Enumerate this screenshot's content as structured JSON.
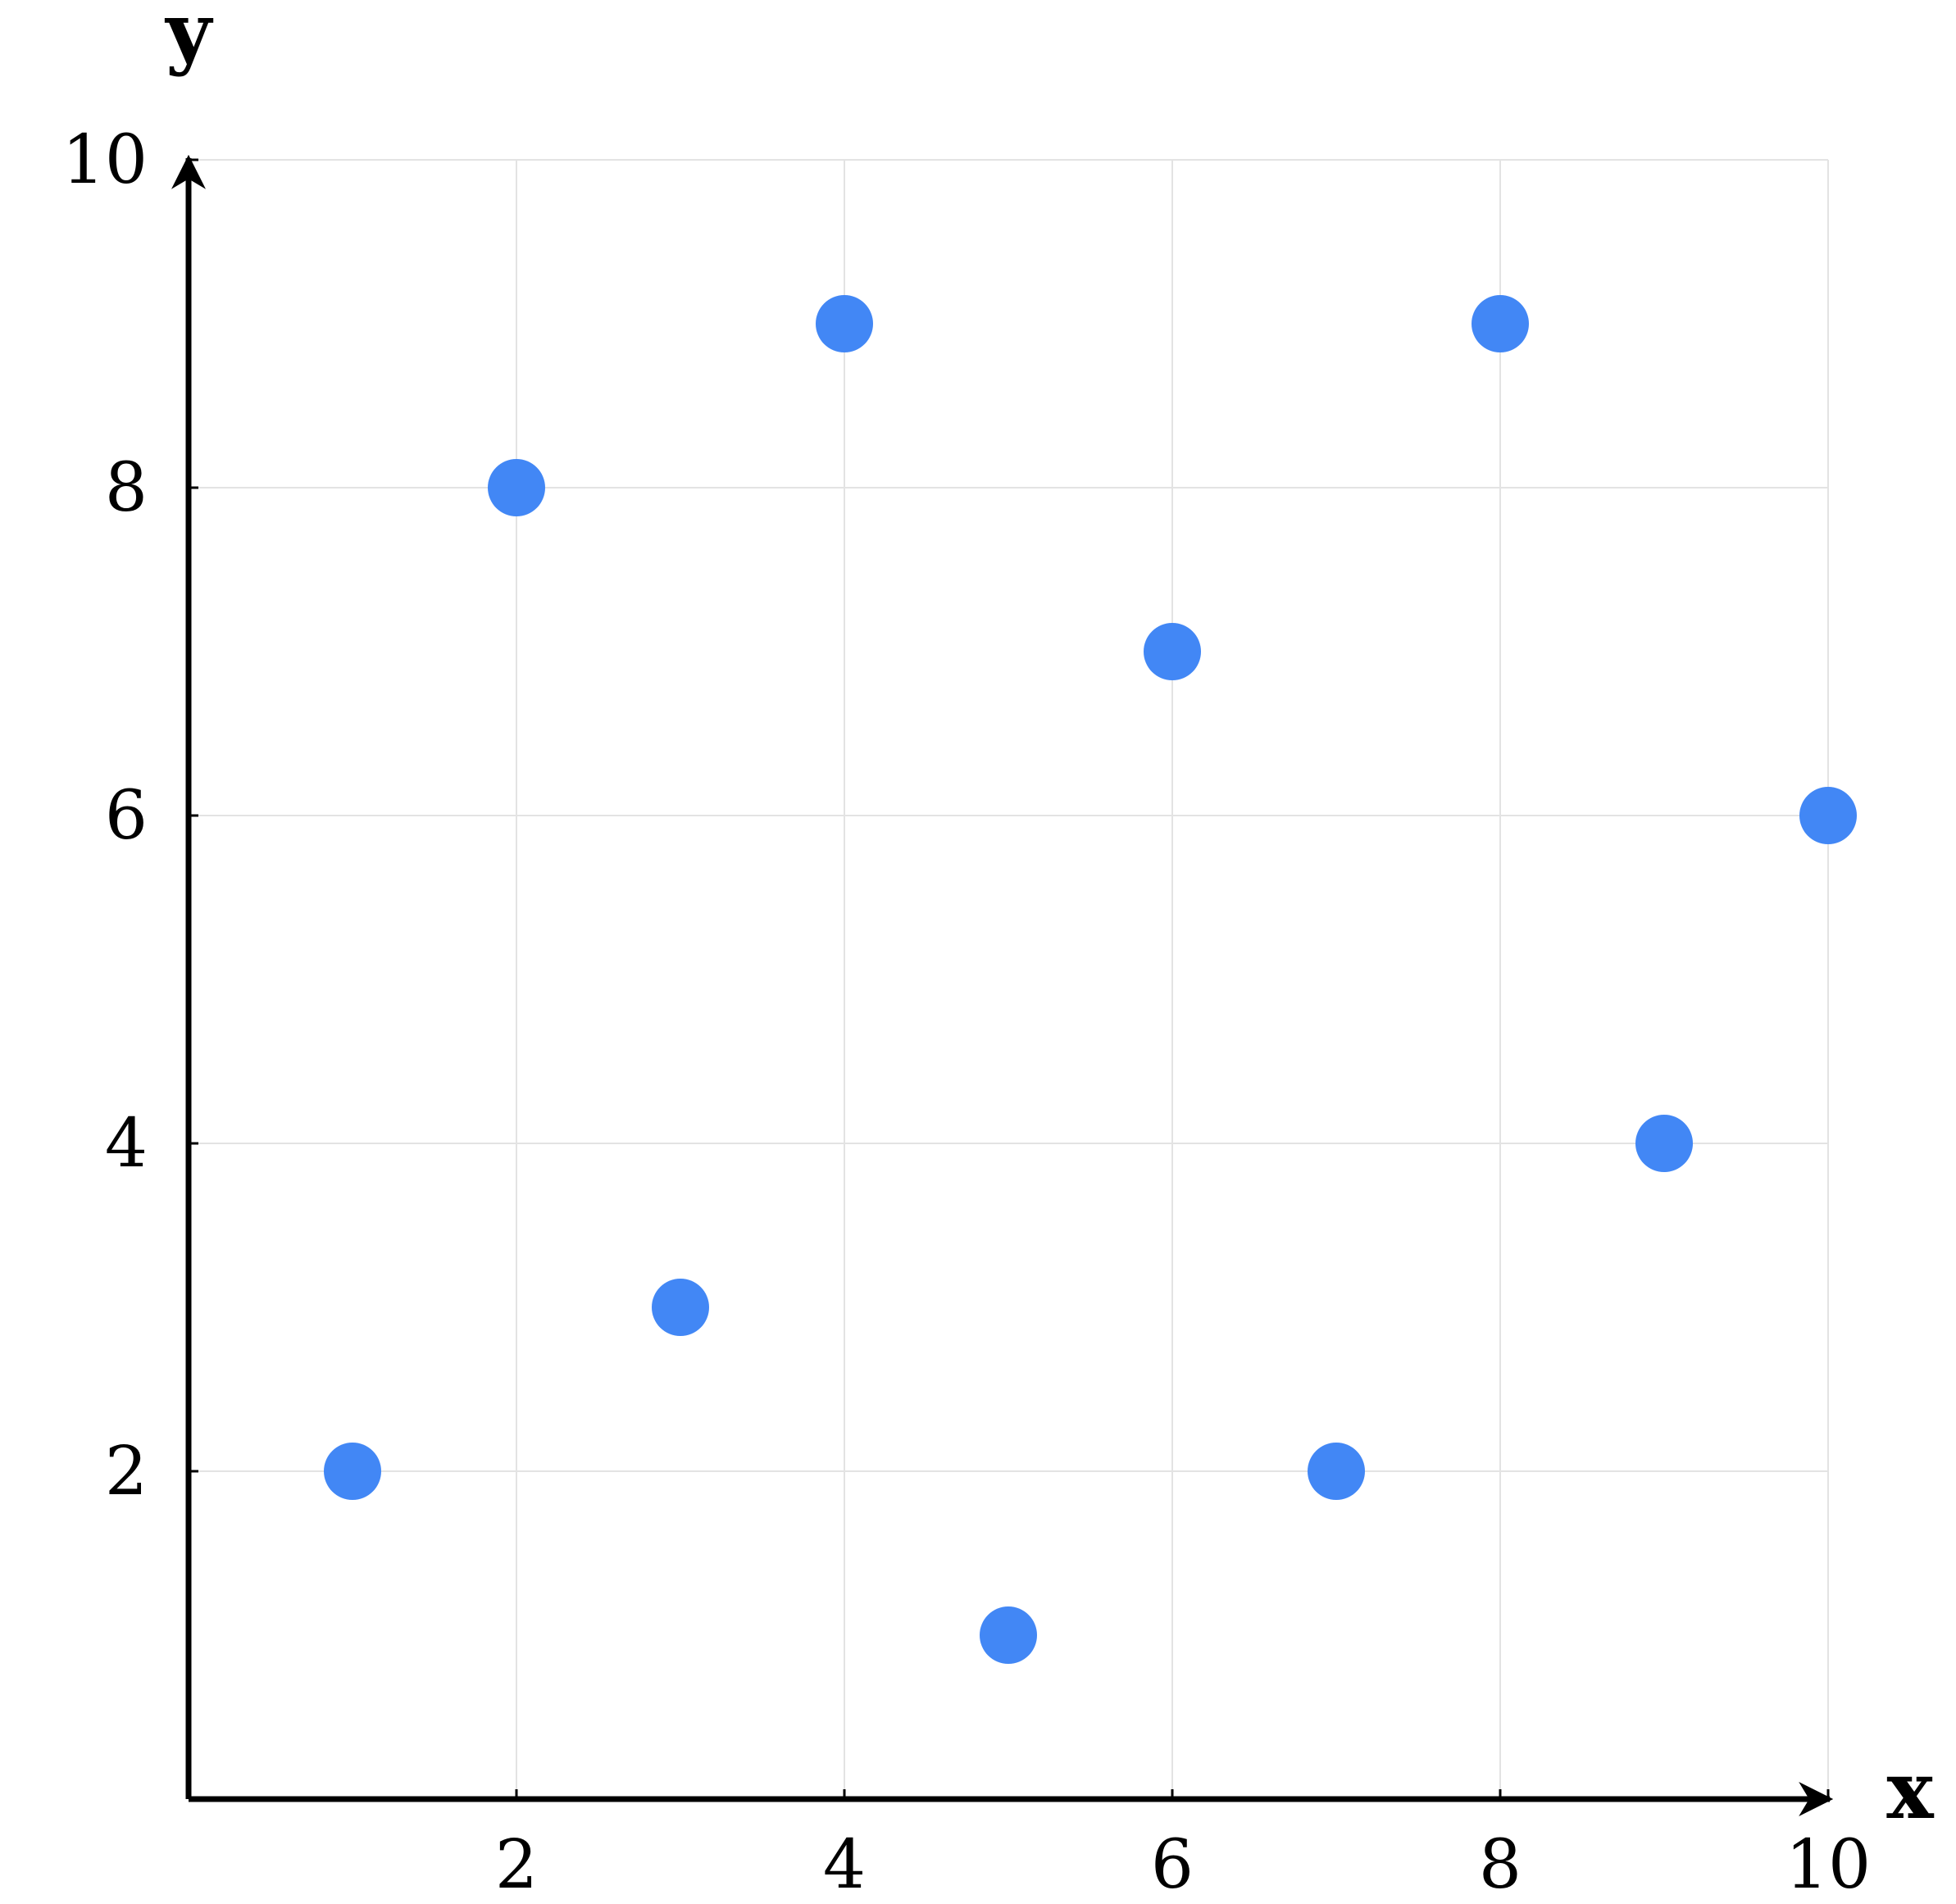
{
  "chart_data": {
    "type": "scatter",
    "title": "",
    "xlabel": "x",
    "ylabel": "y",
    "xlim": [
      0,
      10
    ],
    "ylim": [
      0,
      10
    ],
    "xticks": [
      "2",
      "4",
      "6",
      "8",
      "10"
    ],
    "yticks": [
      "2",
      "4",
      "6",
      "8",
      "10"
    ],
    "grid": true,
    "series": [
      {
        "x": [
          1,
          2,
          3,
          4,
          5,
          6,
          7,
          8,
          9,
          10
        ],
        "y": [
          2,
          8,
          3,
          9,
          1,
          7,
          2,
          9,
          4,
          6
        ]
      }
    ],
    "colors": {
      "point": "#4287f5",
      "axis": "#000000",
      "grid": "#e3e3e3"
    }
  }
}
